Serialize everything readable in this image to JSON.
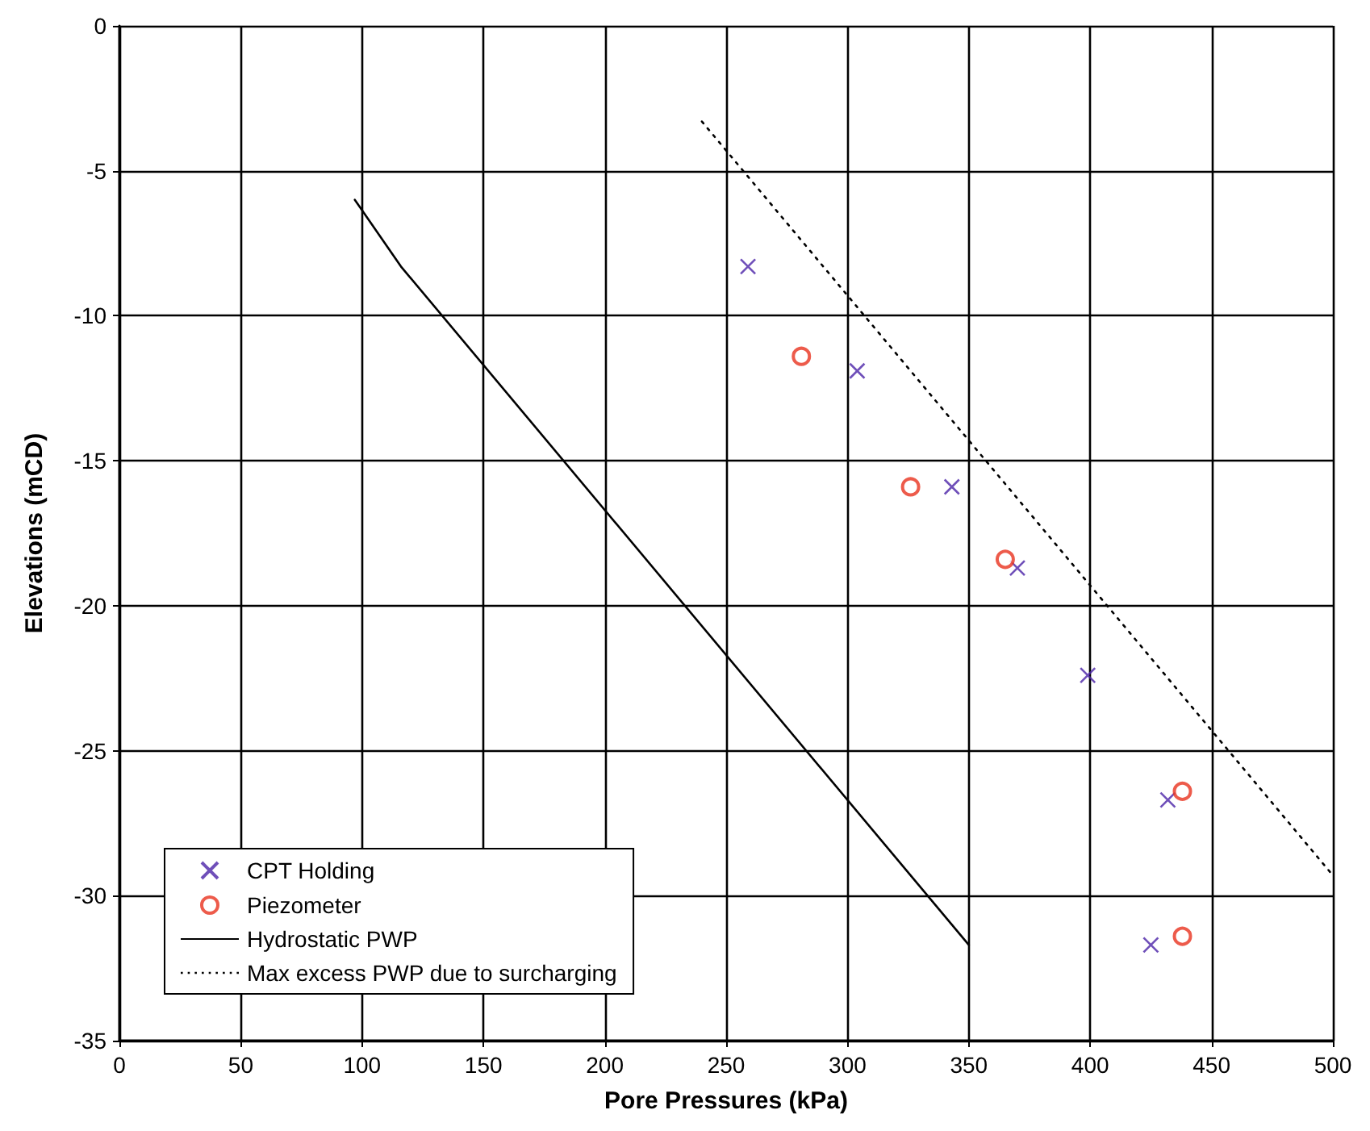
{
  "chart_data": {
    "type": "scatter",
    "xlabel": "Pore Pressures (kPa)",
    "ylabel": "Elevations (mCD)",
    "xlim": [
      0,
      500
    ],
    "xticks": [
      0,
      50,
      100,
      150,
      200,
      250,
      300,
      350,
      400,
      450,
      500
    ],
    "ylim": [
      -35,
      0
    ],
    "yticks": [
      -35,
      -30,
      -25,
      -20,
      -15,
      -10,
      -5,
      0
    ],
    "grid": true,
    "legend": "bottom left",
    "series": [
      {
        "name": "CPT Holding",
        "marker": "cross",
        "color": "#4b23a8",
        "x": [
          259,
          304,
          343,
          370,
          399,
          432,
          425
        ],
        "values": [
          -8.3,
          -11.9,
          -15.9,
          -18.7,
          -22.4,
          -26.7,
          -31.7
        ]
      },
      {
        "name": "Piezometer",
        "marker": "circle",
        "color": "#e8321e",
        "x": [
          281,
          326,
          365,
          438,
          438
        ],
        "values": [
          -11.4,
          -15.9,
          -18.4,
          -26.4,
          -31.4
        ]
      },
      {
        "name": "Hydrostatic PWP",
        "type": "line",
        "marker": "none",
        "line_style": "solid",
        "color": "#000000",
        "x": [
          97,
          116,
          350
        ],
        "values": [
          -6.0,
          -8.3,
          -31.7
        ]
      },
      {
        "name": "Max excess PWP due to surcharging",
        "type": "line",
        "marker": "none",
        "line_style": "dotted",
        "color": "#000000",
        "x": [
          240,
          500
        ],
        "values": [
          -3.3,
          -29.3
        ]
      }
    ]
  }
}
